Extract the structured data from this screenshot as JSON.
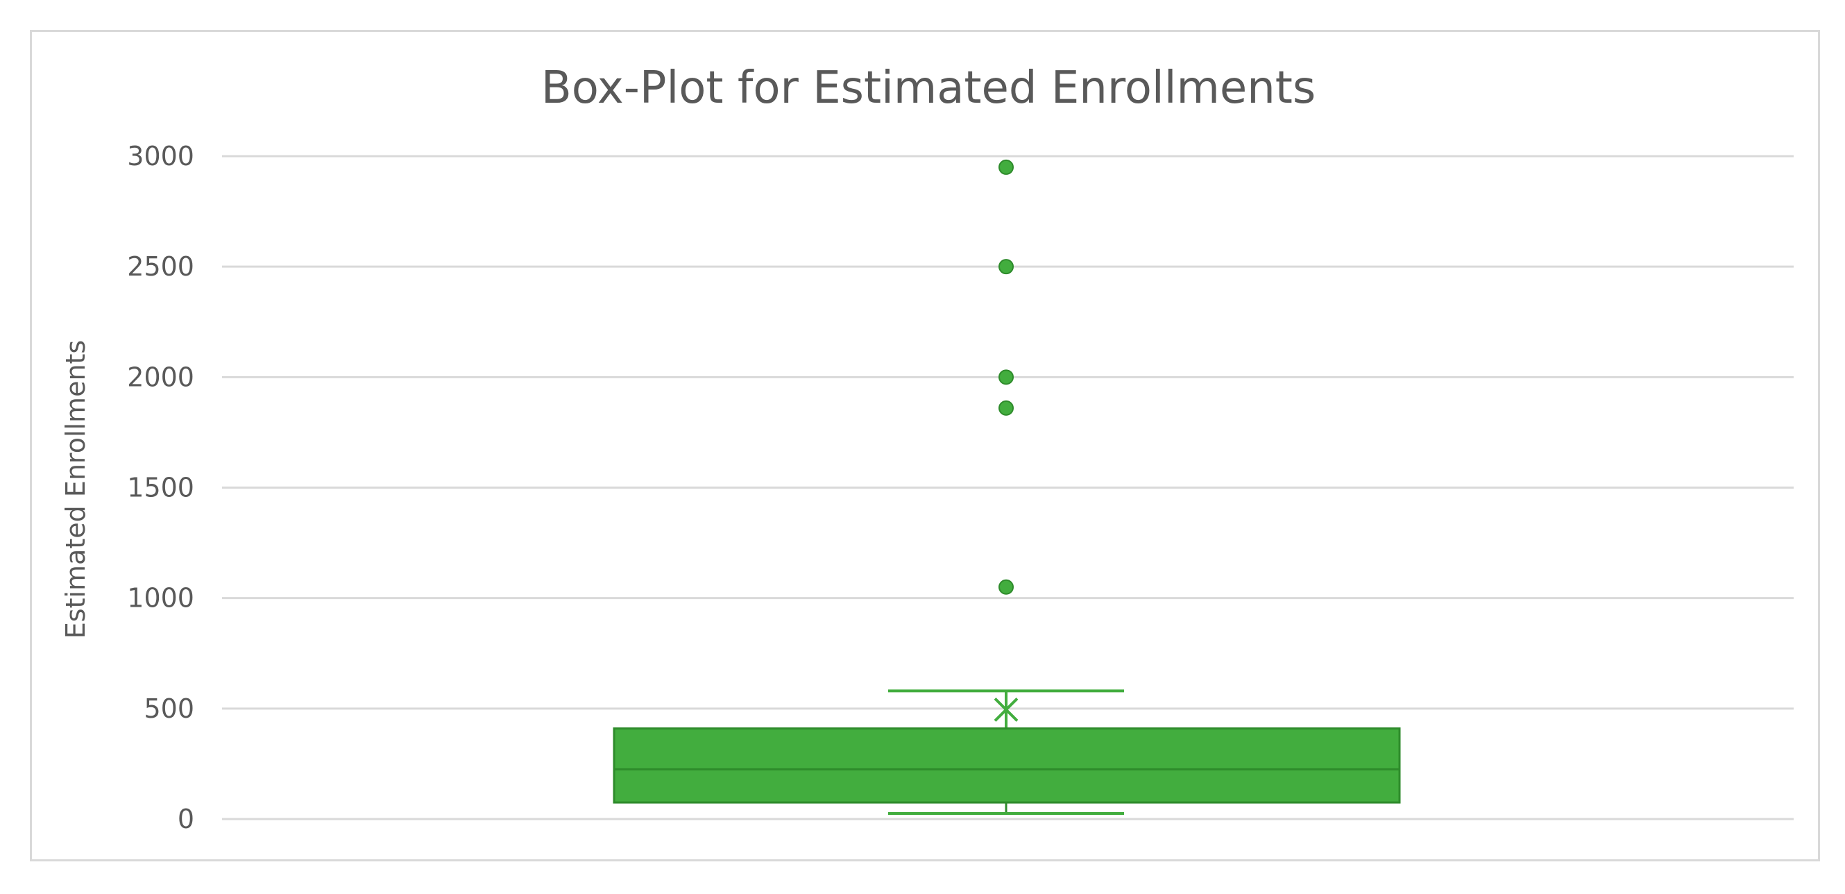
{
  "chart_data": {
    "type": "box",
    "title": "Box-Plot for Estimated Enrollments",
    "xlabel": "",
    "ylabel": "Estimated Enrollments",
    "ylim": [
      0,
      3000
    ],
    "yticks": [
      "0",
      "500",
      "1000",
      "1500",
      "2000",
      "2500",
      "3000"
    ],
    "grid": true,
    "legend": "none",
    "box": {
      "min": 25,
      "q1": 75,
      "median": 225,
      "q3": 410,
      "max": 580,
      "mean": 495,
      "outliers": [
        1050,
        1860,
        2000,
        2500,
        2950
      ]
    },
    "colors": {
      "box_fill": "#42ad3e",
      "box_stroke": "#2e8b2b",
      "grid": "#d9d9d9",
      "text": "#595959"
    }
  }
}
